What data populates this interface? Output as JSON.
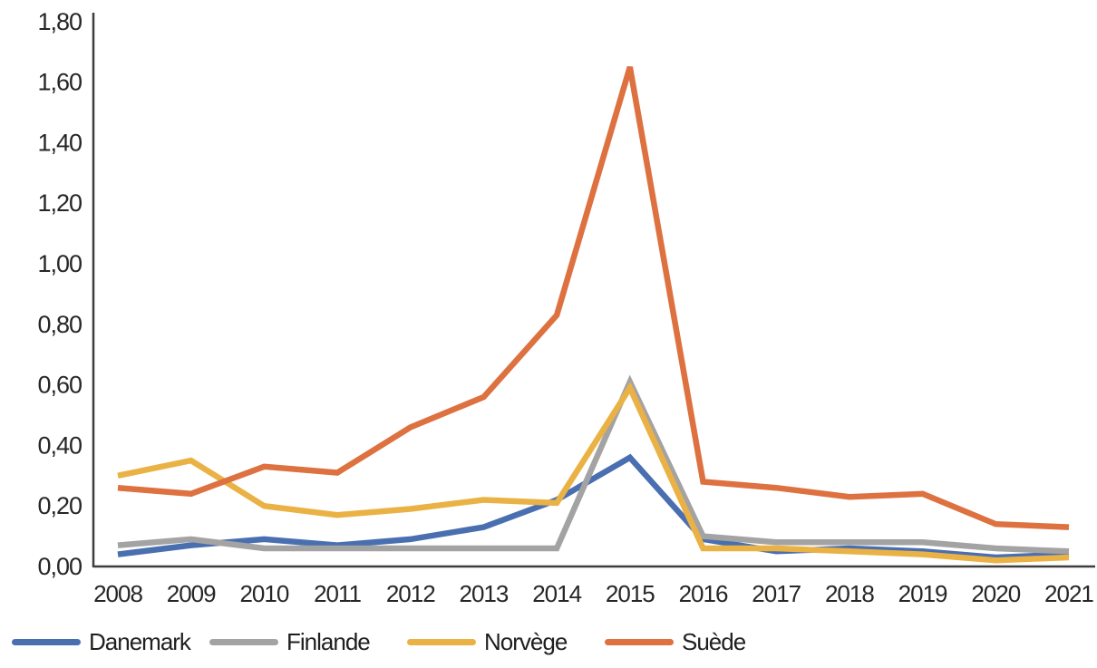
{
  "chart_data": {
    "type": "line",
    "x": [
      "2008",
      "2009",
      "2010",
      "2011",
      "2012",
      "2013",
      "2014",
      "2015",
      "2016",
      "2017",
      "2018",
      "2019",
      "2020",
      "2021"
    ],
    "series": [
      {
        "name": "Danemark",
        "color": "#4A6FB0",
        "values": [
          0.04,
          0.07,
          0.09,
          0.07,
          0.09,
          0.13,
          0.22,
          0.36,
          0.09,
          0.05,
          0.06,
          0.05,
          0.03,
          0.04
        ]
      },
      {
        "name": "Finlande",
        "color": "#A3A3A3",
        "values": [
          0.07,
          0.09,
          0.06,
          0.06,
          0.06,
          0.06,
          0.06,
          0.61,
          0.1,
          0.08,
          0.08,
          0.08,
          0.06,
          0.05
        ]
      },
      {
        "name": "Norvège",
        "color": "#EAB244",
        "values": [
          0.3,
          0.35,
          0.2,
          0.17,
          0.19,
          0.22,
          0.21,
          0.59,
          0.06,
          0.06,
          0.05,
          0.04,
          0.02,
          0.03
        ]
      },
      {
        "name": "Suède",
        "color": "#DD7140",
        "values": [
          0.26,
          0.24,
          0.33,
          0.31,
          0.46,
          0.56,
          0.83,
          1.65,
          0.28,
          0.26,
          0.23,
          0.24,
          0.14,
          0.13
        ]
      }
    ],
    "ylim": [
      0,
      1.8
    ],
    "ytick_step": 0.2,
    "ytick_labels": [
      "0,00",
      "0,20",
      "0,40",
      "0,60",
      "0,80",
      "1,00",
      "1,20",
      "1,40",
      "1,60",
      "1,80"
    ],
    "grid": false,
    "legend_position": "bottom",
    "axis_color": "#3D3D3D",
    "line_width": 6.5
  }
}
